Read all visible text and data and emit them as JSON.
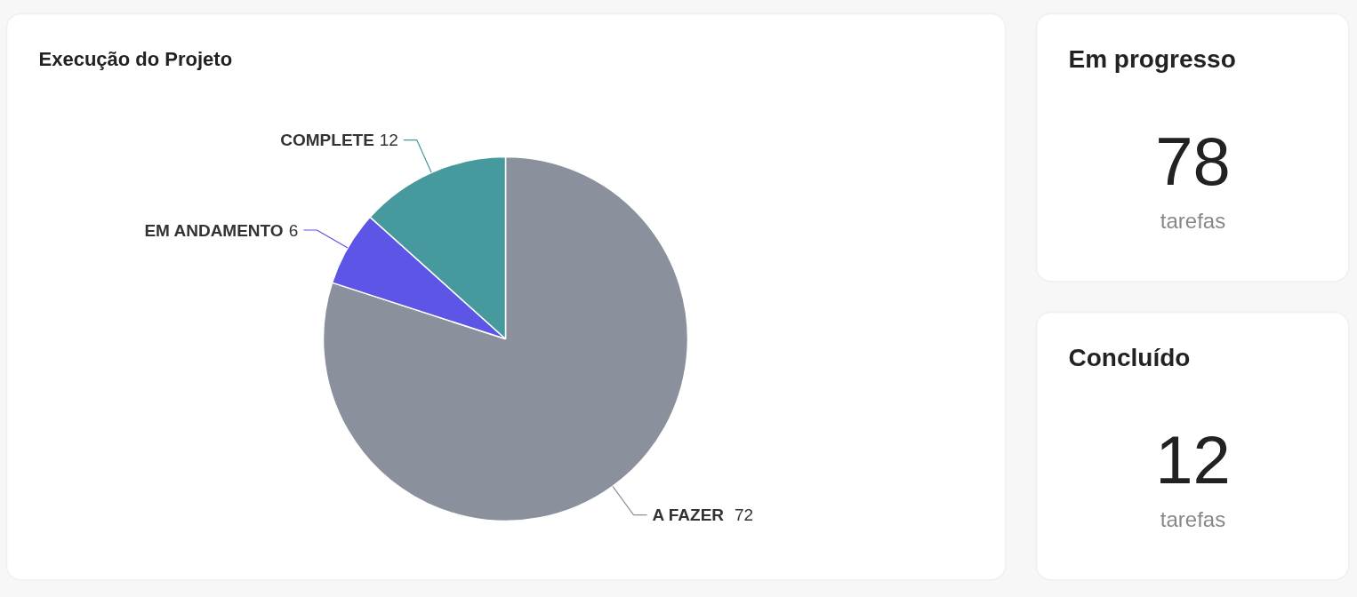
{
  "chart_data": [
    {
      "type": "pie",
      "title": "Execução do Projeto",
      "categories": [
        "A FAZER",
        "EM ANDAMENTO",
        "COMPLETE"
      ],
      "values": [
        72,
        6,
        12
      ],
      "colors": [
        "#8a909c",
        "#5d55e5",
        "#46999c"
      ],
      "data_labels": true
    },
    {
      "type": "other",
      "title": "Em progresso",
      "annotations": [
        "78",
        "tarefas"
      ]
    },
    {
      "type": "other",
      "title": "Concluído",
      "annotations": [
        "12",
        "tarefas"
      ]
    }
  ]
}
